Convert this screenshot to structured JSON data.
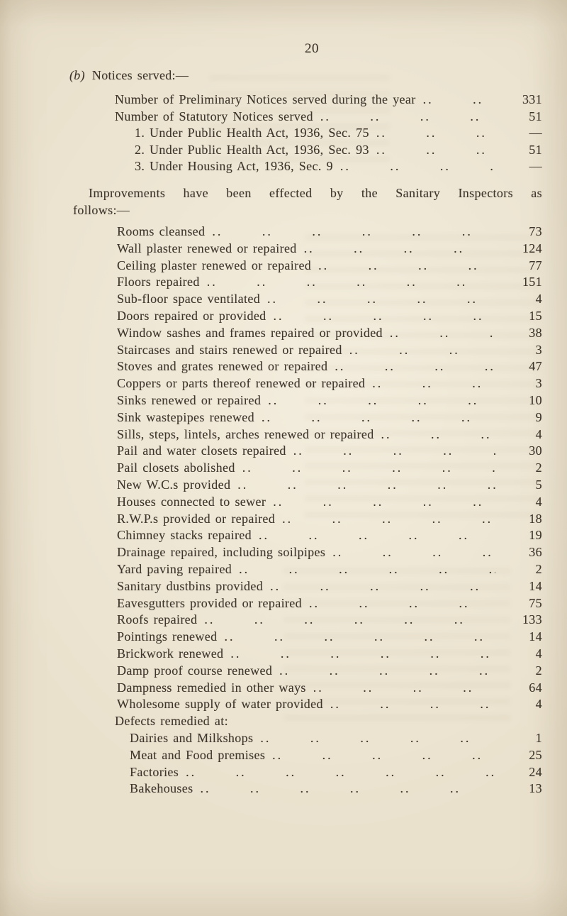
{
  "page": {
    "number": "20",
    "paper_color": "#eae1cd",
    "ink_color": "#3e362c"
  },
  "notices": {
    "heading_prefix": "(b)",
    "heading_text": "Notices served:—",
    "rows": [
      {
        "label": "Number of Preliminary Notices served during the year",
        "value": "331"
      },
      {
        "label": "Number of Statutory Notices served",
        "value": "51"
      },
      {
        "label": "1. Under Public Health Act, 1936, Sec. 75",
        "value": "—",
        "indent": 1
      },
      {
        "label": "2. Under Public Health Act, 1936, Sec. 93",
        "value": "51",
        "indent": 1
      },
      {
        "label": "3. Under Housing Act, 1936, Sec. 9",
        "value": "—",
        "indent": 1
      }
    ]
  },
  "improvements": {
    "intro_line1": "Improvements have been effected by the Sanitary Inspectors as",
    "intro_line2": "follows:—",
    "rows": [
      {
        "label": "Rooms cleansed",
        "value": "73"
      },
      {
        "label": "Wall plaster renewed or repaired",
        "value": "124"
      },
      {
        "label": "Ceiling plaster renewed or repaired",
        "value": "77"
      },
      {
        "label": "Floors repaired",
        "value": "151"
      },
      {
        "label": "Sub-floor space ventilated",
        "value": "4"
      },
      {
        "label": "Doors repaired or provided",
        "value": "15"
      },
      {
        "label": "Window sashes and frames repaired or provided",
        "value": "38"
      },
      {
        "label": "Staircases and stairs renewed or repaired",
        "value": "3"
      },
      {
        "label": "Stoves and grates renewed or repaired",
        "value": "47"
      },
      {
        "label": "Coppers or parts thereof renewed or repaired",
        "value": "3"
      },
      {
        "label": "Sinks renewed or repaired",
        "value": "10"
      },
      {
        "label": "Sink wastepipes renewed",
        "value": "9"
      },
      {
        "label": "Sills, steps, lintels, arches renewed or repaired",
        "value": "4"
      },
      {
        "label": "Pail and water closets repaired",
        "value": "30"
      },
      {
        "label": "Pail closets abolished",
        "value": "2"
      },
      {
        "label": "New W.C.s provided",
        "value": "5"
      },
      {
        "label": "Houses connected to sewer",
        "value": "4"
      },
      {
        "label": "R.W.P.s provided or repaired",
        "value": "18"
      },
      {
        "label": "Chimney stacks repaired",
        "value": "19"
      },
      {
        "label": "Drainage repaired, including soilpipes",
        "value": "36"
      },
      {
        "label": "Yard paving repaired",
        "value": "2"
      },
      {
        "label": "Sanitary dustbins provided",
        "value": "14"
      },
      {
        "label": "Eavesgutters provided or repaired",
        "value": "75"
      },
      {
        "label": "Roofs repaired",
        "value": "133"
      },
      {
        "label": "Pointings renewed",
        "value": "14"
      },
      {
        "label": "Brickwork renewed",
        "value": "4"
      },
      {
        "label": "Damp proof course renewed",
        "value": "2"
      },
      {
        "label": "Dampness remedied in other ways",
        "value": "64"
      },
      {
        "label": "Wholesome supply of water provided",
        "value": "4"
      },
      {
        "label": "Defects remedied at:",
        "header": true
      },
      {
        "label": "Dairies and Milkshops",
        "value": "1",
        "indent": 1
      },
      {
        "label": "Meat and Food premises",
        "value": "25",
        "indent": 1
      },
      {
        "label": "Factories",
        "value": "24",
        "indent": 1
      },
      {
        "label": "Bakehouses",
        "value": "13",
        "indent": 1
      }
    ]
  }
}
